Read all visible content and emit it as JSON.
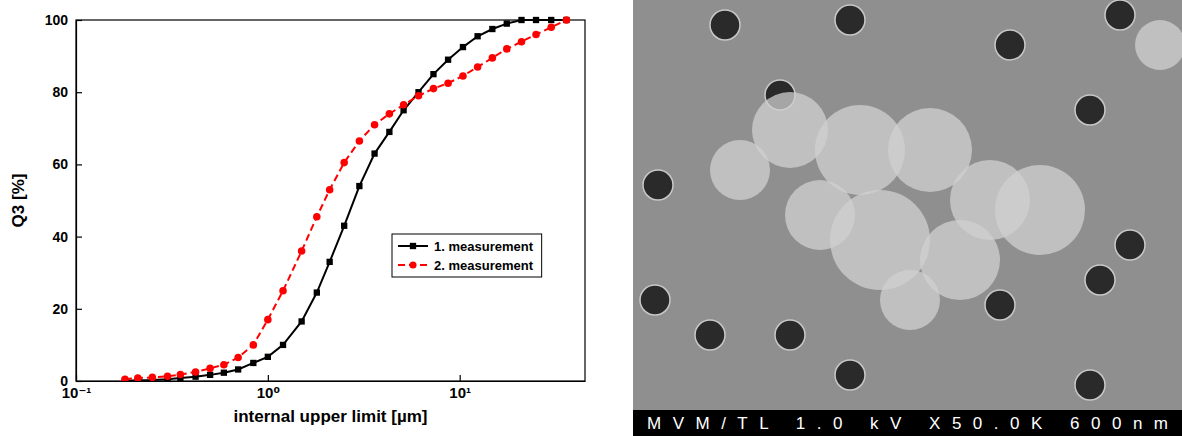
{
  "chart_data": {
    "type": "line",
    "xlabel": "internal upper limit [µm]",
    "ylabel": "Q3 [%]",
    "log": "x",
    "grid": false,
    "legend": "right",
    "xlim": [
      0.1,
      45
    ],
    "xticks": [
      {
        "value": 0.1,
        "label": "10⁻¹"
      },
      {
        "value": 1,
        "label": "10⁰"
      },
      {
        "value": 10,
        "label": "10¹"
      }
    ],
    "ylim": [
      0,
      100
    ],
    "yticks": [
      0,
      20,
      40,
      60,
      80,
      100
    ],
    "x": [
      0.18,
      0.21,
      0.25,
      0.3,
      0.35,
      0.42,
      0.5,
      0.59,
      0.7,
      0.84,
      1.0,
      1.2,
      1.5,
      1.8,
      2.1,
      2.5,
      3.0,
      3.6,
      4.3,
      5.1,
      6.1,
      7.3,
      8.7,
      10.4,
      12.4,
      14.8,
      17.6,
      21,
      25,
      30,
      36
    ],
    "series": [
      {
        "name": "1. measurement",
        "color": "#000000",
        "marker": "square",
        "line_style": "solid",
        "values": [
          0.1,
          0.2,
          0.3,
          0.5,
          0.8,
          1.2,
          1.7,
          2.3,
          3.2,
          5,
          6.7,
          10,
          16.5,
          24.5,
          33,
          43,
          54,
          63,
          69,
          75,
          80,
          85,
          89,
          92.5,
          95.5,
          97.5,
          99,
          100,
          100,
          100,
          100
        ]
      },
      {
        "name": "2. measurement",
        "color": "#ff0000",
        "marker": "circle",
        "line_style": "dashed",
        "values": [
          0.5,
          0.8,
          1,
          1.3,
          1.8,
          2.5,
          3.5,
          4.5,
          6.5,
          10,
          17,
          25,
          36,
          45.5,
          53,
          60.5,
          66.5,
          71,
          74,
          76.5,
          79,
          81,
          82.5,
          84.5,
          87,
          89.5,
          92,
          94,
          96,
          98,
          100
        ]
      }
    ]
  },
  "micrograph": {
    "label": "MVM/TL 1.0 kV X50.0K 600nm"
  }
}
